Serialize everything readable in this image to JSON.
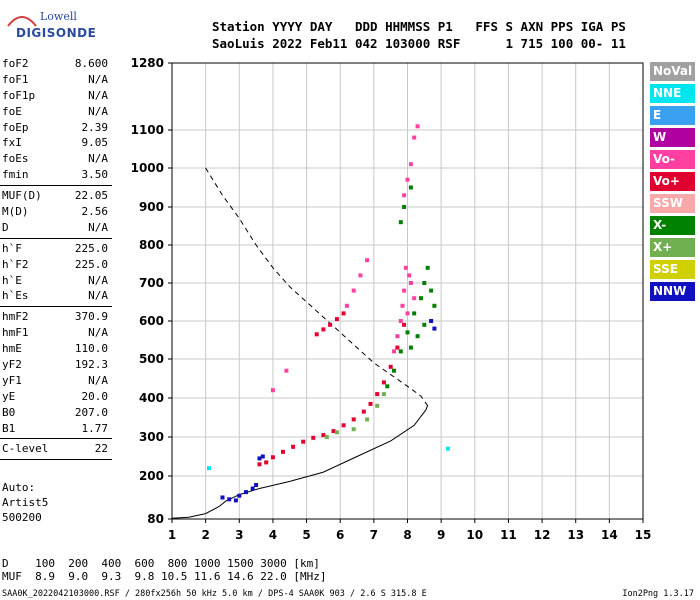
{
  "logo": {
    "line1": "Lowell",
    "line2": "DIGISONDE"
  },
  "header": {
    "line1": "Station YYYY DAY   DDD HHMMSS P1   FFS S AXN PPS IGA PS",
    "line2": "SaoLuis 2022 Feb11 042 103000 RSF      1 715 100 00- 11"
  },
  "params_group1": [
    {
      "k": "foF2",
      "v": "8.600"
    },
    {
      "k": "foF1",
      "v": "N/A"
    },
    {
      "k": "foF1p",
      "v": "N/A"
    },
    {
      "k": "foE",
      "v": "N/A"
    },
    {
      "k": "foEp",
      "v": "2.39"
    },
    {
      "k": "fxI",
      "v": "9.05"
    },
    {
      "k": "foEs",
      "v": "N/A"
    },
    {
      "k": "fmin",
      "v": "3.50"
    }
  ],
  "params_group2": [
    {
      "k": "MUF(D)",
      "v": "22.05"
    },
    {
      "k": "M(D)",
      "v": "2.56"
    },
    {
      "k": "D",
      "v": "N/A"
    }
  ],
  "params_group3": [
    {
      "k": "h`F",
      "v": "225.0"
    },
    {
      "k": "h`F2",
      "v": "225.0"
    },
    {
      "k": "h`E",
      "v": "N/A"
    },
    {
      "k": "h`Es",
      "v": "N/A"
    }
  ],
  "params_group4": [
    {
      "k": "hmF2",
      "v": "370.9"
    },
    {
      "k": "hmF1",
      "v": "N/A"
    },
    {
      "k": "hmE",
      "v": "110.0"
    },
    {
      "k": "yF2",
      "v": "192.3"
    },
    {
      "k": "yF1",
      "v": "N/A"
    },
    {
      "k": "yE",
      "v": "20.0"
    },
    {
      "k": "B0",
      "v": "207.0"
    },
    {
      "k": "B1",
      "v": "1.77"
    }
  ],
  "params_group5": [
    {
      "k": "C-level",
      "v": "22"
    }
  ],
  "auto": {
    "line1": "Auto:",
    "line2": "Artist5",
    "line3": "500200"
  },
  "legend": [
    {
      "label": "NoVal",
      "color": "#a0a0a0"
    },
    {
      "label": "NNE",
      "color": "#00e5f0"
    },
    {
      "label": "E",
      "color": "#3aa0f0"
    },
    {
      "label": "W",
      "color": "#b000a0"
    },
    {
      "label": "Vo-",
      "color": "#ff40a0"
    },
    {
      "label": "Vo+",
      "color": "#e00030"
    },
    {
      "label": "SSW",
      "color": "#f8a8a8"
    },
    {
      "label": "X-",
      "color": "#008000"
    },
    {
      "label": "X+",
      "color": "#70b050"
    },
    {
      "label": "SSE",
      "color": "#d0d000"
    },
    {
      "label": "NNW",
      "color": "#1010c0"
    }
  ],
  "muf_table": {
    "line1": "D    100  200  400  600  800 1000 1500 3000 [km]",
    "line2": "MUF  8.9  9.0  9.3  9.8 10.5 11.6 14.6 22.0 [MHz]"
  },
  "footer": {
    "left": "SAA0K_2022042103000.RSF / 280fx256h 50 kHz 5.0 km / DPS-4 SAA0K 903 / 2.6 S 315.8 E",
    "right": "Ion2Png 1.3.17"
  },
  "chart_data": {
    "type": "scatter",
    "xlim": [
      1,
      15
    ],
    "ylim": [
      80,
      1280
    ],
    "x_ticks": [
      "1",
      "2",
      "3",
      "4",
      "5",
      "6",
      "7",
      "8",
      "9",
      "10",
      "11",
      "12",
      "13",
      "14",
      "15"
    ],
    "y_ticks": [
      "80",
      "200",
      "300",
      "400",
      "500",
      "600",
      "700",
      "800",
      "900",
      "1000",
      "1100",
      "1280"
    ],
    "grid": true,
    "series": [
      {
        "name": "Vo+",
        "color": "#e00030",
        "points": [
          [
            3.6,
            230
          ],
          [
            3.8,
            235
          ],
          [
            4.0,
            248
          ],
          [
            4.3,
            262
          ],
          [
            4.6,
            275
          ],
          [
            4.9,
            288
          ],
          [
            5.2,
            298
          ],
          [
            5.5,
            305
          ],
          [
            5.8,
            315
          ],
          [
            6.1,
            330
          ],
          [
            6.4,
            345
          ],
          [
            6.7,
            365
          ],
          [
            6.9,
            385
          ],
          [
            7.1,
            410
          ],
          [
            7.3,
            440
          ],
          [
            7.5,
            480
          ],
          [
            7.7,
            530
          ],
          [
            7.9,
            590
          ],
          [
            5.3,
            565
          ],
          [
            5.5,
            578
          ],
          [
            5.7,
            590
          ],
          [
            5.9,
            605
          ],
          [
            6.1,
            620
          ]
        ]
      },
      {
        "name": "Vo-",
        "color": "#ff40a0",
        "points": [
          [
            7.6,
            520
          ],
          [
            7.7,
            560
          ],
          [
            7.8,
            600
          ],
          [
            7.85,
            640
          ],
          [
            7.9,
            680
          ],
          [
            8.0,
            620
          ],
          [
            8.1,
            700
          ],
          [
            8.2,
            660
          ],
          [
            7.95,
            740
          ],
          [
            8.05,
            720
          ],
          [
            6.2,
            640
          ],
          [
            6.4,
            680
          ],
          [
            6.6,
            720
          ],
          [
            6.8,
            760
          ],
          [
            4.4,
            470
          ],
          [
            4.0,
            420
          ],
          [
            7.9,
            930
          ],
          [
            8.0,
            970
          ],
          [
            8.1,
            1010
          ],
          [
            8.2,
            1080
          ],
          [
            8.3,
            1110
          ]
        ]
      },
      {
        "name": "X-",
        "color": "#008000",
        "points": [
          [
            7.4,
            430
          ],
          [
            7.6,
            470
          ],
          [
            7.8,
            520
          ],
          [
            8.0,
            570
          ],
          [
            8.2,
            620
          ],
          [
            8.4,
            660
          ],
          [
            8.5,
            700
          ],
          [
            8.6,
            740
          ],
          [
            8.7,
            680
          ],
          [
            8.8,
            640
          ],
          [
            8.5,
            590
          ],
          [
            8.3,
            560
          ],
          [
            8.1,
            530
          ],
          [
            7.9,
            900
          ],
          [
            7.8,
            860
          ],
          [
            8.1,
            950
          ]
        ]
      },
      {
        "name": "X+",
        "color": "#70b050",
        "points": [
          [
            6.4,
            320
          ],
          [
            6.8,
            345
          ],
          [
            7.1,
            380
          ],
          [
            7.3,
            410
          ],
          [
            5.6,
            300
          ],
          [
            5.9,
            312
          ]
        ]
      },
      {
        "name": "NNW",
        "color": "#1010c0",
        "points": [
          [
            2.5,
            140
          ],
          [
            2.7,
            135
          ],
          [
            2.9,
            132
          ],
          [
            3.0,
            145
          ],
          [
            3.2,
            155
          ],
          [
            3.4,
            165
          ],
          [
            3.5,
            175
          ],
          [
            3.7,
            250
          ],
          [
            3.6,
            245
          ],
          [
            8.7,
            600
          ],
          [
            8.8,
            580
          ]
        ]
      },
      {
        "name": "NNE",
        "color": "#00e5f0",
        "points": [
          [
            9.2,
            270
          ],
          [
            2.1,
            220
          ]
        ]
      }
    ],
    "curves": [
      {
        "name": "profile-solid",
        "style": "solid",
        "points": [
          [
            1.0,
            82
          ],
          [
            1.5,
            85
          ],
          [
            2.0,
            95
          ],
          [
            2.4,
            115
          ],
          [
            2.6,
            130
          ],
          [
            3.0,
            148
          ],
          [
            3.6,
            165
          ],
          [
            4.5,
            185
          ],
          [
            5.5,
            210
          ],
          [
            6.5,
            250
          ],
          [
            7.5,
            290
          ],
          [
            8.2,
            330
          ],
          [
            8.55,
            370
          ],
          [
            8.6,
            382
          ]
        ]
      },
      {
        "name": "profile-dashed",
        "style": "dashed",
        "points": [
          [
            2.0,
            1000
          ],
          [
            2.5,
            930
          ],
          [
            3.0,
            870
          ],
          [
            3.5,
            800
          ],
          [
            4.0,
            740
          ],
          [
            4.5,
            690
          ],
          [
            5.0,
            650
          ],
          [
            5.5,
            610
          ],
          [
            6.0,
            570
          ],
          [
            6.5,
            530
          ],
          [
            7.0,
            490
          ],
          [
            7.5,
            460
          ],
          [
            8.0,
            430
          ],
          [
            8.4,
            405
          ],
          [
            8.6,
            380
          ]
        ]
      }
    ]
  }
}
